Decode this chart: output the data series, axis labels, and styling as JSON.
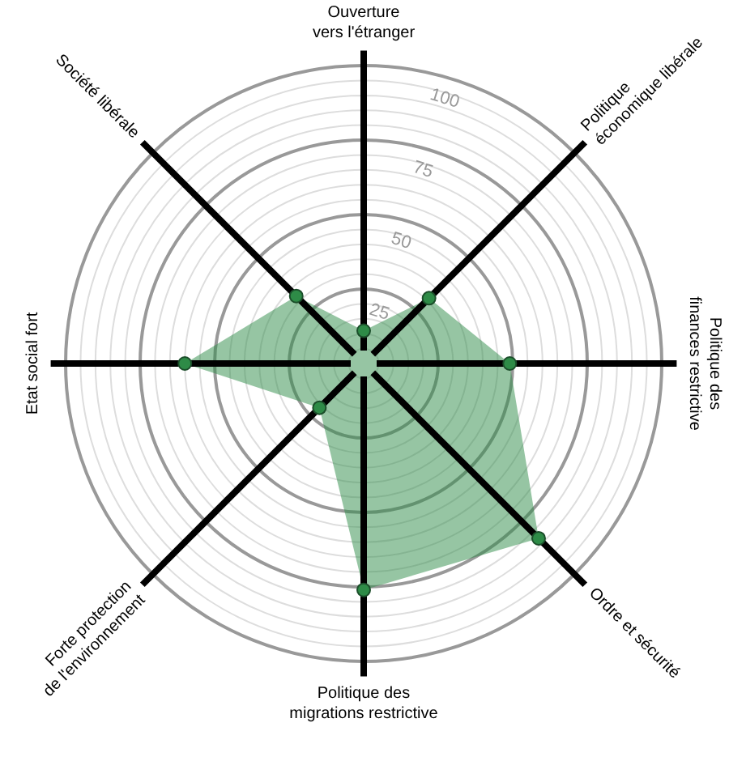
{
  "chart_data": {
    "type": "radar",
    "categories": [
      "Ouverture\nvers l'étranger",
      "Politique\néconomique libérale",
      "Politique des\nfinances restrictive",
      "Ordre et sécurité",
      "Politique des\nmigrations restrictive",
      "Forte protection\nde l'environnement",
      "Etat social fort",
      "Société libérale"
    ],
    "series": [
      {
        "color": "#2e8b47",
        "values": [
          11,
          31,
          49,
          83,
          76,
          21,
          60,
          32
        ]
      }
    ],
    "ylim": [
      0,
      100
    ],
    "yticks": [
      25,
      50,
      75,
      100
    ],
    "grid": true,
    "marker": "circle"
  }
}
